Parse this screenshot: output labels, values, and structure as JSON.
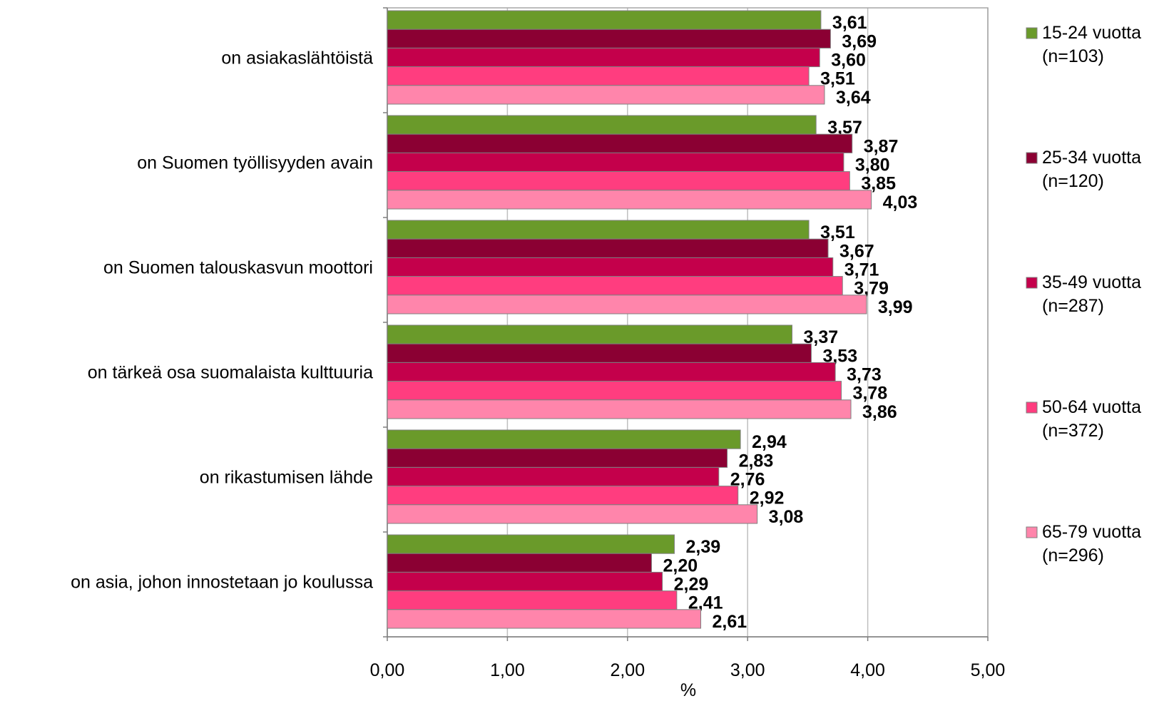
{
  "chart_data": {
    "type": "bar",
    "orientation": "horizontal",
    "categories": [
      "on asiakaslähtöistä",
      "on Suomen työllisyyden avain",
      "on Suomen talouskasvun moottori",
      "on tärkeä osa suomalaista kulttuuria",
      "on rikastumisen lähde",
      "on asia, johon innostetaan jo koulussa"
    ],
    "series": [
      {
        "name": [
          "15-24 vuotta",
          "(n=103)"
        ],
        "color": "#6a9a2a",
        "values": [
          3.61,
          3.57,
          3.51,
          3.37,
          2.94,
          2.39
        ],
        "labels": [
          "3,61",
          "3,57",
          "3,51",
          "3,37",
          "2,94",
          "2,39"
        ]
      },
      {
        "name": [
          "25-34 vuotta",
          "(n=120)"
        ],
        "color": "#8b0033",
        "values": [
          3.69,
          3.87,
          3.67,
          3.53,
          2.83,
          2.2
        ],
        "labels": [
          "3,69",
          "3,87",
          "3,67",
          "3,53",
          "2,83",
          "2,20"
        ]
      },
      {
        "name": [
          "35-49 vuotta",
          "(n=287)"
        ],
        "color": "#c4004b",
        "values": [
          3.6,
          3.8,
          3.71,
          3.73,
          2.76,
          2.29
        ],
        "labels": [
          "3,60",
          "3,80",
          "3,71",
          "3,73",
          "2,76",
          "2,29"
        ]
      },
      {
        "name": [
          "50-64 vuotta",
          "(n=372)"
        ],
        "color": "#ff3d7f",
        "values": [
          3.51,
          3.85,
          3.79,
          3.78,
          2.92,
          2.41
        ],
        "labels": [
          "3,51",
          "3,85",
          "3,79",
          "3,78",
          "2,92",
          "2,41"
        ]
      },
      {
        "name": [
          "65-79 vuotta",
          "(n=296)"
        ],
        "color": "#ff85ab",
        "values": [
          3.64,
          4.03,
          3.99,
          3.86,
          3.08,
          2.61
        ],
        "labels": [
          "3,64",
          "4,03",
          "3,99",
          "3,86",
          "3,08",
          "2,61"
        ]
      }
    ],
    "xlim": [
      0,
      5
    ],
    "xticks": [
      0,
      1,
      2,
      3,
      4,
      5
    ],
    "xtick_labels": [
      "0,00",
      "1,00",
      "2,00",
      "3,00",
      "4,00",
      "5,00"
    ],
    "xlabel": "%",
    "grid": true,
    "legend": "right"
  }
}
